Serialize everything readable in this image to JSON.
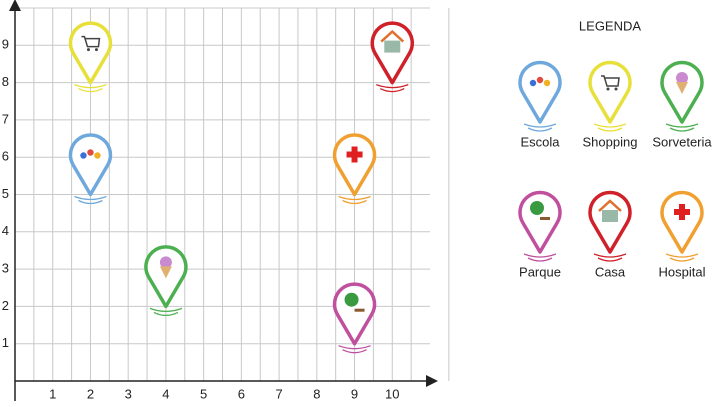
{
  "chart_data": {
    "type": "scatter",
    "legend_title": "LEGENDA",
    "xlim": [
      0,
      11
    ],
    "ylim": [
      0,
      10
    ],
    "xticks": [
      1,
      2,
      3,
      4,
      5,
      6,
      7,
      8,
      9,
      10
    ],
    "yticks": [
      1,
      2,
      3,
      4,
      5,
      6,
      7,
      8,
      9
    ],
    "grid": true,
    "series": [
      {
        "name": "Escola",
        "color": "#6fa8dc",
        "x": [
          2
        ],
        "y": [
          5
        ]
      },
      {
        "name": "Shopping",
        "color": "#e8e03a",
        "x": [
          2
        ],
        "y": [
          8
        ]
      },
      {
        "name": "Sorveteria",
        "color": "#4caf50",
        "x": [
          4
        ],
        "y": [
          2
        ]
      },
      {
        "name": "Parque",
        "color": "#c0509e",
        "x": [
          9
        ],
        "y": [
          1
        ]
      },
      {
        "name": "Casa",
        "color": "#d0202a",
        "x": [
          10
        ],
        "y": [
          8
        ]
      },
      {
        "name": "Hospital",
        "color": "#f0a030",
        "x": [
          9
        ],
        "y": [
          5
        ]
      }
    ]
  }
}
